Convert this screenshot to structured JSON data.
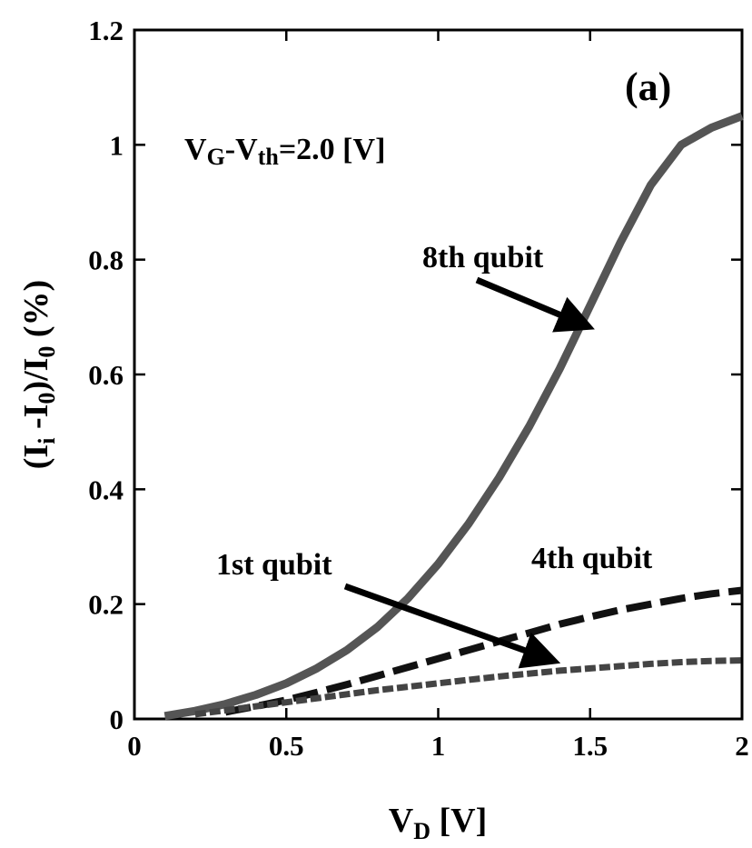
{
  "chart_data": {
    "type": "line",
    "panel_label": "(a)",
    "condition": {
      "base": "V",
      "sub1": "G",
      "mid": "-V",
      "sub2": "th",
      "rest": "=2.0 [V]"
    },
    "xlabel": {
      "base": "V",
      "sub": "D",
      "rest": " [V]"
    },
    "ylabel": {
      "p1": "(I",
      "s1": "i",
      "p2": " -I",
      "s2": "0",
      "p3": ")/I",
      "s3": "0",
      "p4": " (%)"
    },
    "xlim": [
      0,
      2
    ],
    "ylim": [
      0,
      1.2
    ],
    "x_ticks": [
      {
        "value": 0,
        "label": "0"
      },
      {
        "value": 0.5,
        "label": "0.5"
      },
      {
        "value": 1,
        "label": "1"
      },
      {
        "value": 1.5,
        "label": "1.5"
      },
      {
        "value": 2,
        "label": "2"
      }
    ],
    "y_ticks": [
      {
        "value": 0,
        "label": "0"
      },
      {
        "value": 0.2,
        "label": "0.2"
      },
      {
        "value": 0.4,
        "label": "0.4"
      },
      {
        "value": 0.6,
        "label": "0.6"
      },
      {
        "value": 0.8,
        "label": "0.8"
      },
      {
        "value": 1.0,
        "label": "1"
      },
      {
        "value": 1.2,
        "label": "1.2"
      }
    ],
    "grid": false,
    "series": [
      {
        "name": "8th qubit",
        "color": "#555555",
        "style": "solid",
        "x": [
          0.1,
          0.2,
          0.3,
          0.4,
          0.5,
          0.6,
          0.7,
          0.8,
          0.9,
          1.0,
          1.1,
          1.2,
          1.3,
          1.4,
          1.5,
          1.6,
          1.7,
          1.8,
          1.9,
          2.0
        ],
        "y": [
          0.005,
          0.014,
          0.026,
          0.042,
          0.062,
          0.088,
          0.12,
          0.16,
          0.21,
          0.27,
          0.34,
          0.42,
          0.51,
          0.61,
          0.72,
          0.83,
          0.93,
          1.0,
          1.03,
          1.05
        ]
      },
      {
        "name": "4th qubit",
        "color": "#111111",
        "style": "dashed",
        "x": [
          0.3,
          0.4,
          0.5,
          0.6,
          0.7,
          0.8,
          0.9,
          1.0,
          1.1,
          1.2,
          1.3,
          1.4,
          1.5,
          1.6,
          1.7,
          1.8,
          1.9,
          2.0
        ],
        "y": [
          0.012,
          0.022,
          0.033,
          0.046,
          0.06,
          0.075,
          0.09,
          0.105,
          0.12,
          0.135,
          0.15,
          0.165,
          0.178,
          0.19,
          0.2,
          0.21,
          0.218,
          0.224
        ]
      },
      {
        "name": "1st qubit",
        "color": "#444444",
        "style": "dotted",
        "x": [
          0.2,
          0.3,
          0.4,
          0.5,
          0.6,
          0.7,
          0.8,
          0.9,
          1.0,
          1.1,
          1.2,
          1.3,
          1.4,
          1.5,
          1.6,
          1.7,
          1.8,
          1.9,
          2.0
        ],
        "y": [
          0.008,
          0.015,
          0.022,
          0.029,
          0.036,
          0.043,
          0.05,
          0.056,
          0.062,
          0.068,
          0.074,
          0.079,
          0.084,
          0.088,
          0.092,
          0.096,
          0.099,
          0.101,
          0.102
        ]
      }
    ],
    "annotations": [
      {
        "text": "8th qubit",
        "series": "8th qubit",
        "arrow_target": [
          1.53,
          0.68
        ]
      },
      {
        "text": "4th qubit",
        "series": "4th qubit"
      },
      {
        "text": "1st qubit",
        "series": "1st qubit",
        "arrow_target": [
          1.42,
          0.09
        ]
      }
    ]
  }
}
